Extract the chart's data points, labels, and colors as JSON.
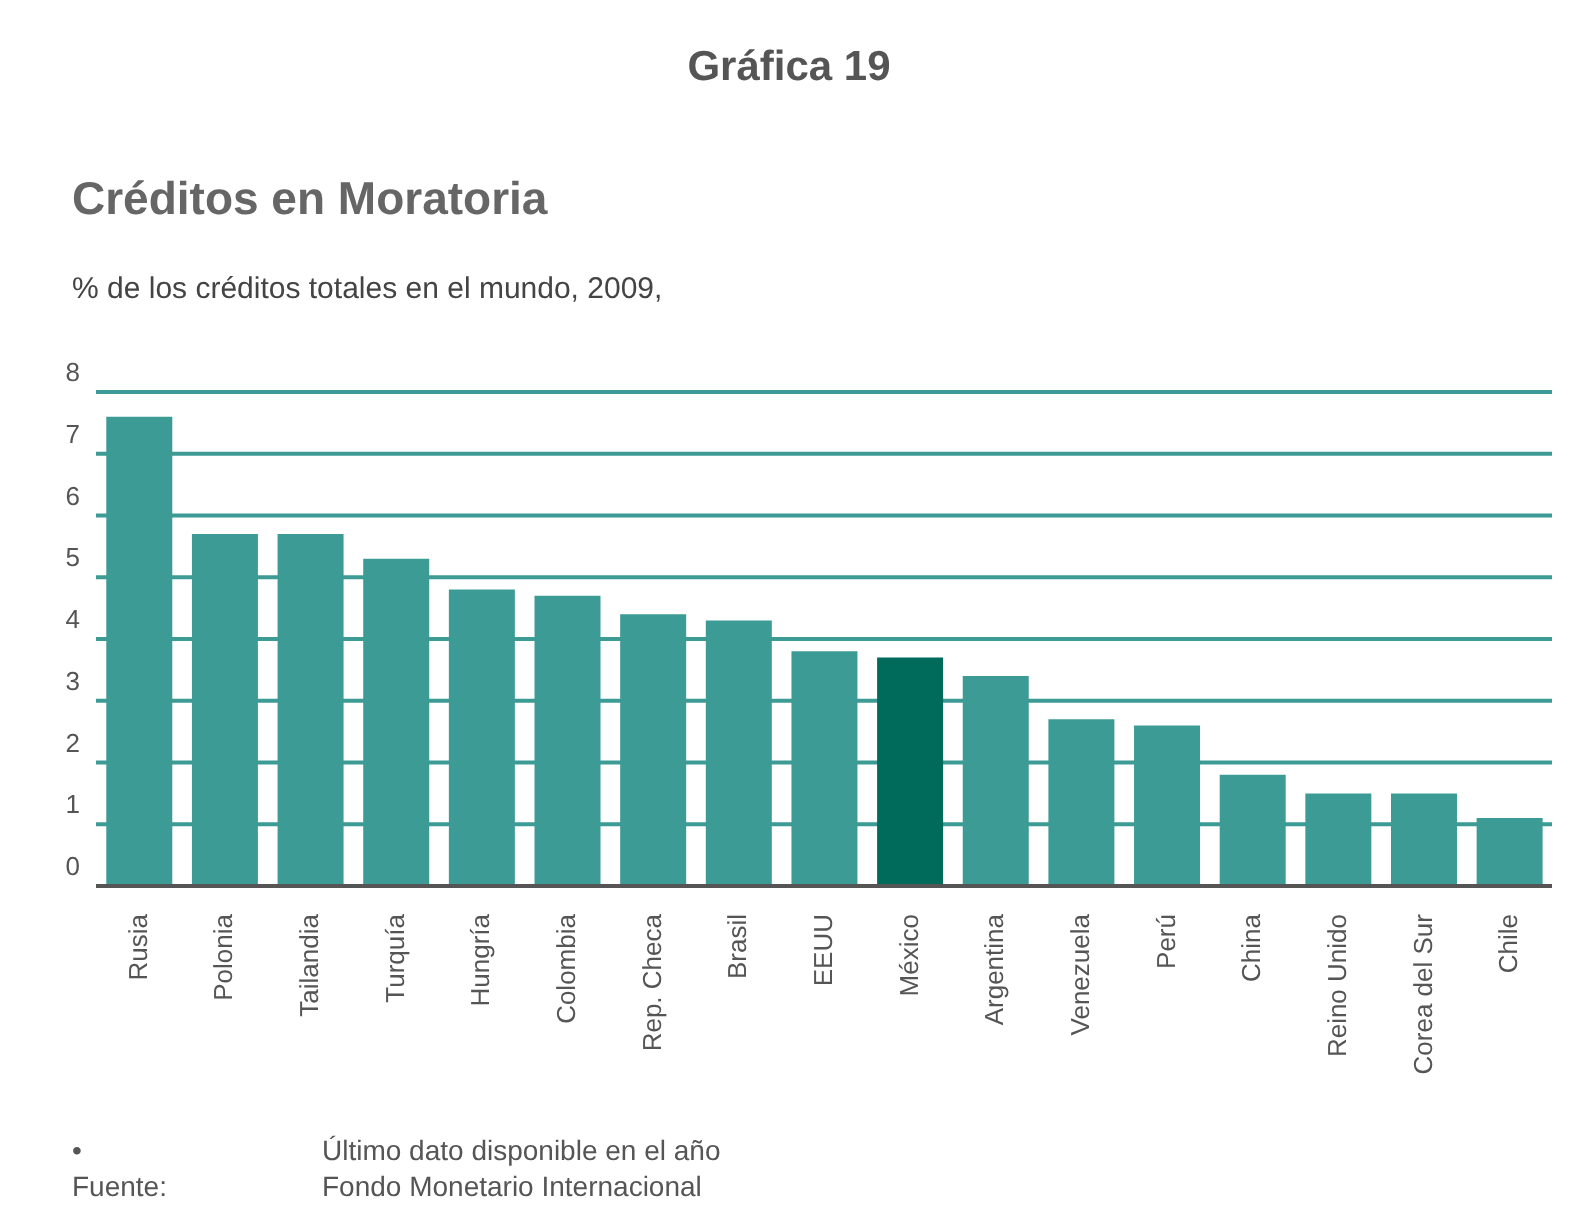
{
  "chart_data": {
    "type": "bar",
    "title": "Créditos en Moratoria",
    "subtitle": "% de los créditos totales en el mundo, 2009,",
    "annotations": [
      "Gráfica 19",
      "•",
      "Último dato disponible en el año",
      "Fuente:",
      "Fondo Monetario Internacional"
    ],
    "categories": [
      "Rusia",
      "Polonia",
      "Tailandia",
      "Turquía",
      "Hungría",
      "Colombia",
      "Rep. Checa",
      "Brasil",
      "EEUU",
      "México",
      "Argentina",
      "Venezuela",
      "Perú",
      "China",
      "Reino Unido",
      "Corea del Sur",
      "Chile"
    ],
    "values": [
      7.6,
      5.7,
      5.7,
      5.3,
      4.8,
      4.7,
      4.4,
      4.3,
      3.8,
      3.7,
      3.4,
      2.7,
      2.6,
      1.8,
      1.5,
      1.5,
      1.1
    ],
    "colors": [
      "#3d9b95",
      "#3d9b95",
      "#3d9b95",
      "#3d9b95",
      "#3d9b95",
      "#3d9b95",
      "#3d9b95",
      "#3d9b95",
      "#3d9b95",
      "#006b5b",
      "#3d9b95",
      "#3d9b95",
      "#3d9b95",
      "#3d9b95",
      "#3d9b95",
      "#3d9b95",
      "#3d9b95"
    ],
    "ylim": [
      0,
      8
    ],
    "yticks": [
      0,
      1,
      2,
      3,
      4,
      5,
      6,
      7,
      8
    ],
    "grid": "y"
  }
}
